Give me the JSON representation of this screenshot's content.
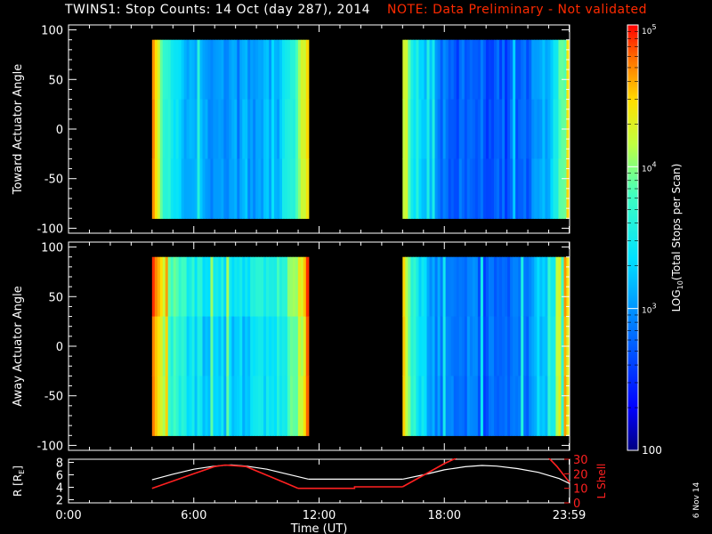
{
  "header": {
    "title": "TWINS1: Stop Counts: 14 Oct (day 287), 2014",
    "note": "NOTE: Data Preliminary - Not validated"
  },
  "colors": {
    "title_text": "#ffffff",
    "note_text": "#ff2a00",
    "background": "#000000",
    "axis": "#ffffff",
    "r_line": "#ffffff",
    "l_shell_line": "#ff2020"
  },
  "stamp": "6 Nov 14",
  "colorbar": {
    "label": "LOG10(Total Stops per Scan)",
    "label_main": "LOG",
    "label_sub": "10",
    "label_rest": "(Total Stops per Scan)",
    "ticks": [
      {
        "value": 100,
        "text": "100",
        "base": "",
        "exp": ""
      },
      {
        "value": 1000,
        "text": "",
        "base": "10",
        "exp": "3"
      },
      {
        "value": 10000,
        "text": "",
        "base": "10",
        "exp": "4"
      },
      {
        "value": 100000,
        "text": "",
        "base": "10",
        "exp": "5"
      }
    ],
    "range": [
      100,
      100000
    ],
    "scale": "log"
  },
  "chart_data": [
    {
      "type": "heatmap",
      "panel": "toward",
      "title": "",
      "ylabel": "Toward Actuator Angle",
      "ylim": [
        -105,
        105
      ],
      "yticks": [
        100,
        50,
        0,
        -50,
        -100
      ],
      "xlim": [
        0,
        24
      ],
      "angle_range": [
        -90,
        90
      ],
      "data_blocks": [
        {
          "start": "04:00",
          "end": "11:30",
          "start_h": 4.0,
          "end_h": 11.5,
          "typical_log10_counts": 3.0,
          "edge_log10_counts": 4.6
        },
        {
          "start": "16:00",
          "end": "23:59",
          "start_h": 16.0,
          "end_h": 23.98,
          "typical_log10_counts": 2.7,
          "edge_log10_counts": 4.3
        }
      ]
    },
    {
      "type": "heatmap",
      "panel": "away",
      "title": "",
      "ylabel": "Away Actuator Angle",
      "ylim": [
        -105,
        105
      ],
      "yticks": [
        100,
        50,
        0,
        -50,
        -100
      ],
      "xlim": [
        0,
        24
      ],
      "angle_range": [
        -90,
        90
      ],
      "data_blocks": [
        {
          "start": "04:00",
          "end": "11:30",
          "start_h": 4.0,
          "end_h": 11.5,
          "typical_log10_counts": 3.3,
          "edge_log10_counts": 4.7
        },
        {
          "start": "16:00",
          "end": "23:59",
          "start_h": 16.0,
          "end_h": 23.98,
          "typical_log10_counts": 2.8,
          "edge_log10_counts": 4.3
        }
      ]
    },
    {
      "type": "line",
      "panel": "orbit",
      "title": "",
      "xlabel": "Time (UT)",
      "x_ticks": [
        {
          "value": 0,
          "text": "0:00"
        },
        {
          "value": 6,
          "text": "6:00"
        },
        {
          "value": 12,
          "text": "12:00"
        },
        {
          "value": 18,
          "text": "18:00"
        },
        {
          "value": 23.98,
          "text": "23:59"
        }
      ],
      "xlim": [
        0,
        24
      ],
      "left_axis": {
        "label": "R [RE]",
        "label_main": "R [R",
        "label_sub": "E",
        "label_end": "]",
        "ylim": [
          1.5,
          8.5
        ],
        "ticks": [
          2,
          4,
          6,
          8
        ]
      },
      "right_axis": {
        "label": "L Shell",
        "ylim": [
          0,
          30
        ],
        "ticks": [
          0,
          10,
          20,
          30
        ]
      },
      "series": [
        {
          "name": "R [RE]",
          "axis": "left",
          "segments": [
            {
              "x": [
                4.0,
                5.0,
                6.0,
                7.0,
                7.8,
                8.5,
                9.5,
                10.5,
                11.5
              ],
              "y": [
                5.2,
                6.1,
                6.9,
                7.4,
                7.6,
                7.4,
                6.9,
                6.1,
                5.3
              ]
            },
            {
              "x": [
                11.5,
                16.0
              ],
              "y": [
                5.3,
                5.3
              ]
            },
            {
              "x": [
                16.0,
                17.0,
                18.0,
                19.0,
                19.8,
                20.5,
                21.5,
                22.5,
                23.5,
                24.0
              ],
              "y": [
                5.3,
                6.0,
                6.8,
                7.3,
                7.5,
                7.4,
                7.0,
                6.4,
                5.4,
                4.6
              ]
            }
          ]
        },
        {
          "name": "L Shell",
          "axis": "right",
          "segments": [
            {
              "x": [
                4.0,
                5.0,
                6.0,
                7.0,
                7.5,
                8.5,
                9.5,
                10.5,
                11.0
              ],
              "y": [
                10,
                15,
                20,
                25,
                26,
                25,
                19,
                13,
                10
              ]
            },
            {
              "x": [
                11.0,
                13.7,
                13.7,
                16.0
              ],
              "y": [
                10,
                10,
                11,
                11
              ]
            },
            {
              "x": [
                16.0,
                17.0,
                18.0,
                18.6
              ],
              "y": [
                11,
                19,
                27,
                31
              ]
            },
            {
              "x": [
                23.0,
                23.4,
                24.0
              ],
              "y": [
                31,
                25,
                14
              ]
            }
          ]
        }
      ]
    }
  ]
}
